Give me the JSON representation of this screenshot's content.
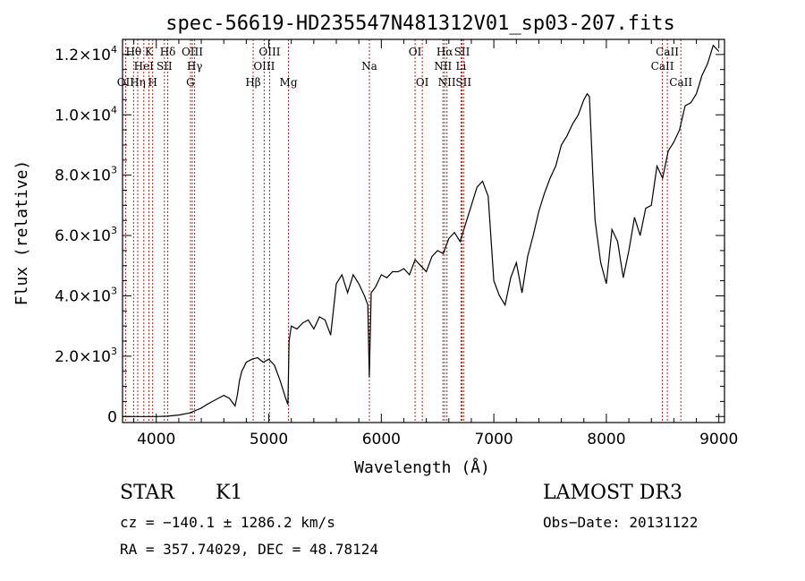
{
  "chart_data": {
    "type": "line",
    "title": "spec-56619-HD235547N481312V01_sp03-207.fits",
    "xlabel": "Wavelength (Å)",
    "ylabel": "Flux (relative)",
    "xlim": [
      3700,
      9050
    ],
    "ylim": [
      -200,
      12500
    ],
    "xticks": [
      4000,
      5000,
      6000,
      7000,
      8000,
      9000
    ],
    "yticks": [
      {
        "value": 0,
        "mantissa": "0",
        "exp": ""
      },
      {
        "value": 2000,
        "mantissa": "2.0×10",
        "exp": "3"
      },
      {
        "value": 4000,
        "mantissa": "4.0×10",
        "exp": "3"
      },
      {
        "value": 6000,
        "mantissa": "6.0×10",
        "exp": "3"
      },
      {
        "value": 8000,
        "mantissa": "8.0×10",
        "exp": "3"
      },
      {
        "value": 10000,
        "mantissa": "1.0×10",
        "exp": "4"
      },
      {
        "value": 12000,
        "mantissa": "1.2×10",
        "exp": "4"
      }
    ],
    "grid": false,
    "series": [
      {
        "x": [
          3700,
          3800,
          3900,
          4000,
          4100,
          4200,
          4300,
          4350,
          4400,
          4450,
          4500,
          4550,
          4600,
          4650,
          4700,
          4720,
          4740,
          4760,
          4780,
          4800,
          4850,
          4900,
          4950,
          5000,
          5050,
          5100,
          5150,
          5170,
          5180,
          5200,
          5250,
          5300,
          5350,
          5400,
          5450,
          5500,
          5550,
          5600,
          5650,
          5700,
          5750,
          5800,
          5850,
          5880,
          5893,
          5910,
          5950,
          6000,
          6050,
          6100,
          6150,
          6200,
          6250,
          6300,
          6350,
          6400,
          6450,
          6500,
          6550,
          6600,
          6650,
          6700,
          6750,
          6800,
          6850,
          6900,
          6950,
          7000,
          7050,
          7100,
          7150,
          7200,
          7250,
          7300,
          7350,
          7400,
          7450,
          7500,
          7550,
          7600,
          7650,
          7700,
          7750,
          7800,
          7830,
          7850,
          7880,
          7900,
          7950,
          8000,
          8050,
          8100,
          8150,
          8200,
          8250,
          8300,
          8350,
          8400,
          8450,
          8500,
          8550,
          8600,
          8650,
          8700,
          8750,
          8800,
          8850,
          8900,
          8950,
          9000
        ],
        "y": [
          0,
          0,
          0,
          0,
          10,
          50,
          120,
          200,
          280,
          400,
          500,
          600,
          700,
          600,
          350,
          700,
          1200,
          1500,
          1650,
          1800,
          1900,
          1950,
          1800,
          1900,
          1700,
          1200,
          600,
          400,
          2500,
          3000,
          2900,
          3100,
          3200,
          2900,
          3300,
          3200,
          2700,
          4400,
          4700,
          4100,
          4700,
          4400,
          4000,
          3700,
          1300,
          4100,
          4300,
          4700,
          4600,
          4800,
          4800,
          4900,
          4700,
          5200,
          5000,
          4800,
          5300,
          5500,
          5400,
          5900,
          6100,
          5800,
          6400,
          7000,
          7600,
          7800,
          7300,
          4500,
          4000,
          3700,
          4600,
          5100,
          4100,
          5300,
          6000,
          6800,
          7400,
          7900,
          8300,
          9000,
          9300,
          9700,
          10000,
          10500,
          10700,
          10600,
          8000,
          6500,
          5100,
          4400,
          6200,
          5800,
          4600,
          5500,
          6600,
          6000,
          6900,
          7000,
          8300,
          7900,
          8800,
          9100,
          9500,
          10300,
          10400,
          10700,
          11300,
          11700,
          12300,
          12100
        ]
      }
    ],
    "emission_lines": [
      {
        "label": "OII",
        "wavelength": 3727,
        "row": 2
      },
      {
        "label": "Hθ",
        "wavelength": 3798,
        "row": 0
      },
      {
        "label": "Hη",
        "wavelength": 3835,
        "row": 2
      },
      {
        "label": "HeI",
        "wavelength": 3889,
        "row": 1
      },
      {
        "label": "K",
        "wavelength": 3934,
        "row": 0
      },
      {
        "label": "H",
        "wavelength": 3968,
        "row": 2
      },
      {
        "label": "SII",
        "wavelength": 4072,
        "row": 1
      },
      {
        "label": "Hδ",
        "wavelength": 4102,
        "row": 0
      },
      {
        "label": "G",
        "wavelength": 4304,
        "row": 2
      },
      {
        "label": "OIII",
        "wavelength": 4320,
        "row": 0
      },
      {
        "label": "Hγ",
        "wavelength": 4341,
        "row": 1
      },
      {
        "label": "Hβ",
        "wavelength": 4861,
        "row": 2
      },
      {
        "label": "OIII",
        "wavelength": 4959,
        "row": 1
      },
      {
        "label": "OIII",
        "wavelength": 5007,
        "row": 0
      },
      {
        "label": "Mg",
        "wavelength": 5175,
        "row": 2
      },
      {
        "label": "Na",
        "wavelength": 5894,
        "row": 1
      },
      {
        "label": "OI",
        "wavelength": 6300,
        "row": 0
      },
      {
        "label": "OI",
        "wavelength": 6364,
        "row": 2
      },
      {
        "label": "NII",
        "wavelength": 6548,
        "row": 1
      },
      {
        "label": "Hα",
        "wavelength": 6563,
        "row": 0
      },
      {
        "label": "NII",
        "wavelength": 6583,
        "row": 2
      },
      {
        "label": "SII",
        "wavelength": 6717,
        "row": 0
      },
      {
        "label": "SII",
        "wavelength": 6731,
        "row": 2
      },
      {
        "label": "Li",
        "wavelength": 6708,
        "row": 1
      },
      {
        "label": "CaII",
        "wavelength": 8498,
        "row": 1
      },
      {
        "label": "CaII",
        "wavelength": 8542,
        "row": 0
      },
      {
        "label": "CaII",
        "wavelength": 8662,
        "row": 2
      }
    ]
  },
  "info": {
    "object_class": "STAR",
    "subclass": "K1",
    "survey": "LAMOST DR3",
    "cz": "cz = −140.1 ± 1286.2 km/s",
    "obs_date": "Obs−Date: 20131122",
    "coords": "RA = 357.74029, DEC =  48.78124"
  }
}
